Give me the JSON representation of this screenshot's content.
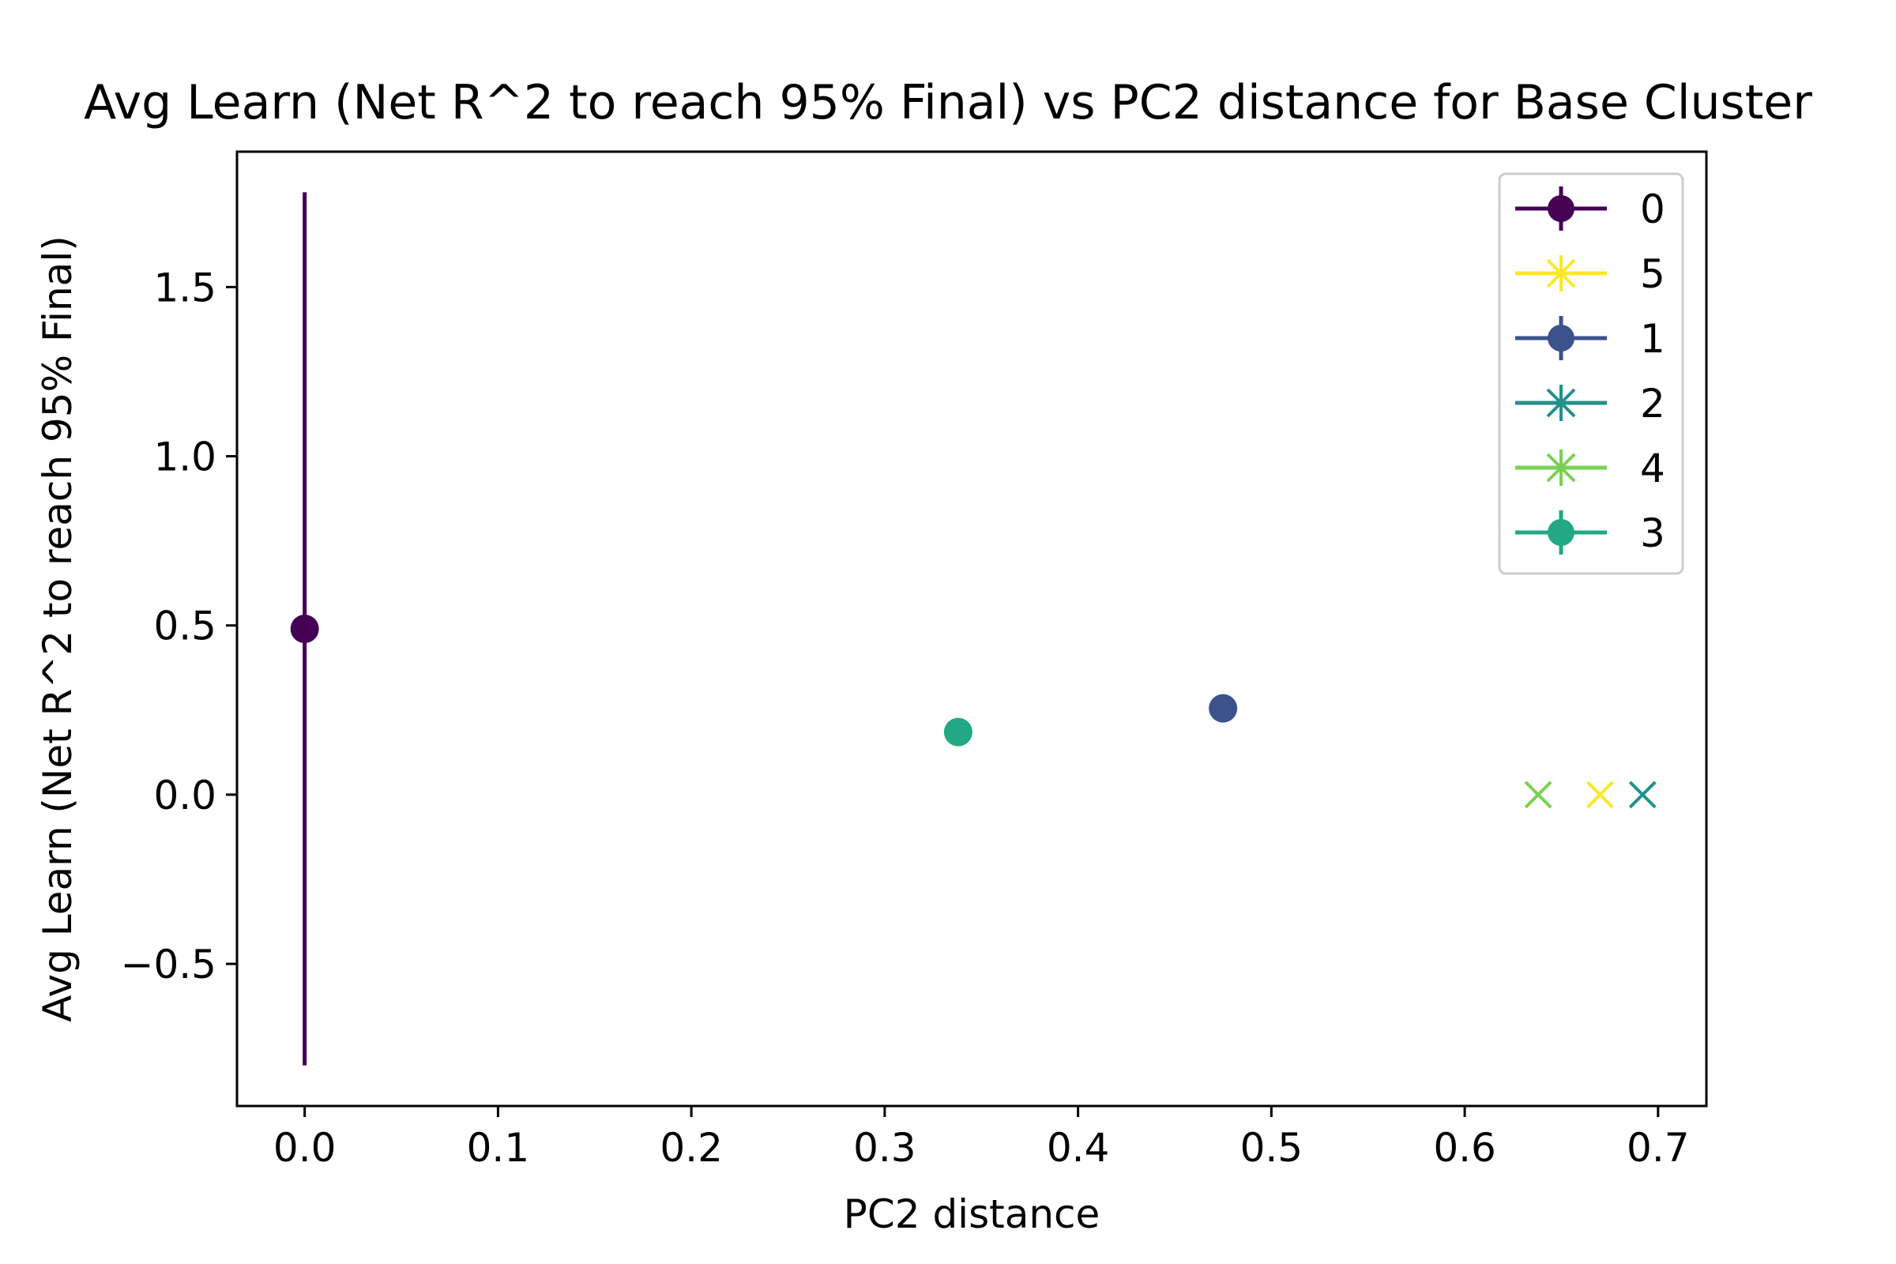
{
  "chart_data": {
    "type": "scatter",
    "title": "Avg Learn (Net R^2 to reach 95% Final) vs PC2 distance for Base Cluster",
    "xlabel": "PC2 distance",
    "ylabel": "Avg Learn (Net R^2 to reach 95% Final)",
    "xlim": [
      -0.035,
      0.725
    ],
    "ylim": [
      -0.92,
      1.9
    ],
    "xticks": [
      0.0,
      0.1,
      0.2,
      0.3,
      0.4,
      0.5,
      0.6,
      0.7
    ],
    "xtick_labels": [
      "0.0",
      "0.1",
      "0.2",
      "0.3",
      "0.4",
      "0.5",
      "0.6",
      "0.7"
    ],
    "yticks": [
      -0.5,
      0.0,
      0.5,
      1.0,
      1.5
    ],
    "ytick_labels": [
      "−0.5",
      "0.0",
      "0.5",
      "1.0",
      "1.5"
    ],
    "grid": false,
    "legend_position": "top-right",
    "series": [
      {
        "name": "0",
        "marker": "circle",
        "color": "#440154",
        "x": 0.0,
        "y": 0.49,
        "yerr_low": -0.8,
        "yerr_high": 1.78
      },
      {
        "name": "5",
        "marker": "x",
        "color": "#fde725",
        "x": 0.67,
        "y": 0.0
      },
      {
        "name": "1",
        "marker": "circle",
        "color": "#3b528b",
        "x": 0.475,
        "y": 0.255
      },
      {
        "name": "2",
        "marker": "x",
        "color": "#21918c",
        "x": 0.692,
        "y": 0.0
      },
      {
        "name": "4",
        "marker": "x",
        "color": "#7ad151",
        "x": 0.638,
        "y": 0.0
      },
      {
        "name": "3",
        "marker": "circle",
        "color": "#22a884",
        "x": 0.338,
        "y": 0.185
      }
    ]
  }
}
